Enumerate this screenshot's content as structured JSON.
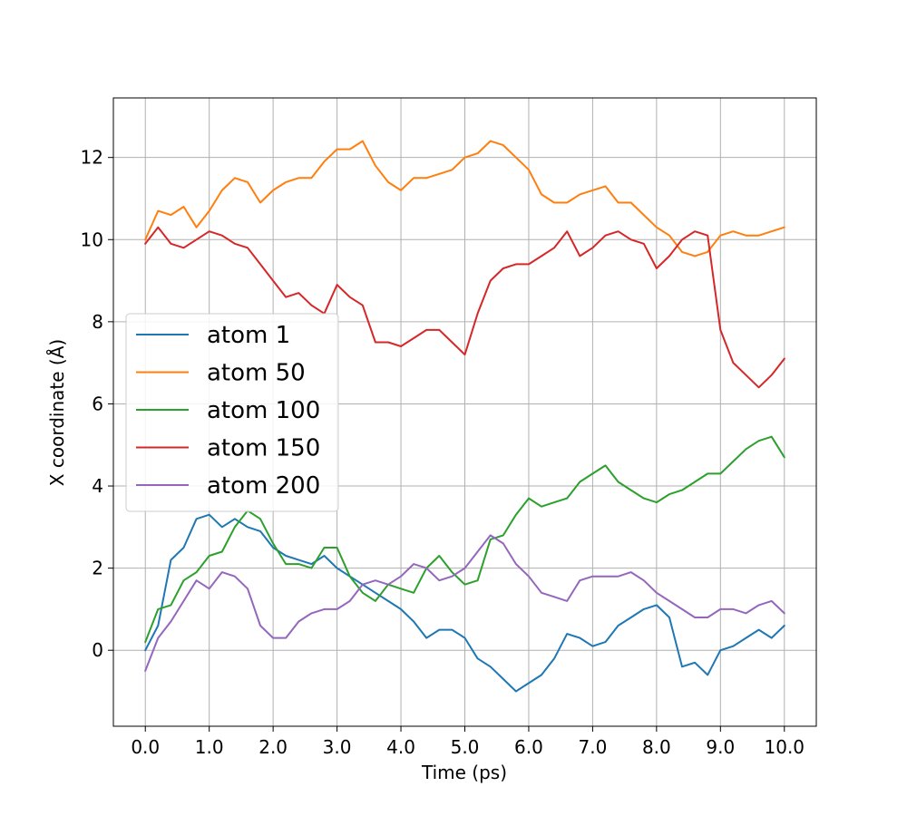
{
  "chart_data": {
    "type": "line",
    "title": "",
    "xlabel": "Time (ps)",
    "ylabel": "X coordinate (Å)",
    "xlim": [
      -0.5,
      10.5
    ],
    "ylim": [
      -1.85,
      13.45
    ],
    "xticks": [
      0,
      1,
      2,
      3,
      4,
      5,
      6,
      7,
      8,
      9,
      10
    ],
    "xtick_labels": [
      "0.0",
      "1.0",
      "2.0",
      "3.0",
      "4.0",
      "5.0",
      "6.0",
      "7.0",
      "8.0",
      "9.0",
      "10.0"
    ],
    "yticks": [
      0,
      2,
      4,
      6,
      8,
      10,
      12
    ],
    "ytick_labels": [
      "0",
      "2",
      "4",
      "6",
      "8",
      "10",
      "12"
    ],
    "grid": true,
    "legend_position": "center-left",
    "series": [
      {
        "name": "atom 1",
        "color": "#1f77b4",
        "points": [
          [
            0,
            0.0
          ],
          [
            0.2,
            0.6
          ],
          [
            0.4,
            2.2
          ],
          [
            0.6,
            2.5
          ],
          [
            0.8,
            3.2
          ],
          [
            1.0,
            3.3
          ],
          [
            1.2,
            3.0
          ],
          [
            1.4,
            3.2
          ],
          [
            1.6,
            3.0
          ],
          [
            1.8,
            2.9
          ],
          [
            2.0,
            2.5
          ],
          [
            2.2,
            2.3
          ],
          [
            2.4,
            2.2
          ],
          [
            2.6,
            2.1
          ],
          [
            2.8,
            2.3
          ],
          [
            3.0,
            2.0
          ],
          [
            3.2,
            1.8
          ],
          [
            3.4,
            1.6
          ],
          [
            3.6,
            1.4
          ],
          [
            3.8,
            1.2
          ],
          [
            4.0,
            1.0
          ],
          [
            4.2,
            0.7
          ],
          [
            4.4,
            0.3
          ],
          [
            4.6,
            0.5
          ],
          [
            4.8,
            0.5
          ],
          [
            5.0,
            0.3
          ],
          [
            5.2,
            -0.2
          ],
          [
            5.4,
            -0.4
          ],
          [
            5.6,
            -0.7
          ],
          [
            5.8,
            -1.0
          ],
          [
            6.0,
            -0.8
          ],
          [
            6.2,
            -0.6
          ],
          [
            6.4,
            -0.2
          ],
          [
            6.6,
            0.4
          ],
          [
            6.8,
            0.3
          ],
          [
            7.0,
            0.1
          ],
          [
            7.2,
            0.2
          ],
          [
            7.4,
            0.6
          ],
          [
            7.6,
            0.8
          ],
          [
            7.8,
            1.0
          ],
          [
            8.0,
            1.1
          ],
          [
            8.2,
            0.8
          ],
          [
            8.4,
            -0.4
          ],
          [
            8.6,
            -0.3
          ],
          [
            8.8,
            -0.6
          ],
          [
            9.0,
            0.0
          ],
          [
            9.2,
            0.1
          ],
          [
            9.4,
            0.3
          ],
          [
            9.6,
            0.5
          ],
          [
            9.8,
            0.3
          ],
          [
            10.0,
            0.6
          ]
        ]
      },
      {
        "name": "atom 50",
        "color": "#ff7f0e",
        "points": [
          [
            0,
            10.0
          ],
          [
            0.2,
            10.7
          ],
          [
            0.4,
            10.6
          ],
          [
            0.6,
            10.8
          ],
          [
            0.8,
            10.3
          ],
          [
            1.0,
            10.7
          ],
          [
            1.2,
            11.2
          ],
          [
            1.4,
            11.5
          ],
          [
            1.6,
            11.4
          ],
          [
            1.8,
            10.9
          ],
          [
            2.0,
            11.2
          ],
          [
            2.2,
            11.4
          ],
          [
            2.4,
            11.5
          ],
          [
            2.6,
            11.5
          ],
          [
            2.8,
            11.9
          ],
          [
            3.0,
            12.2
          ],
          [
            3.2,
            12.2
          ],
          [
            3.4,
            12.4
          ],
          [
            3.6,
            11.8
          ],
          [
            3.8,
            11.4
          ],
          [
            4.0,
            11.2
          ],
          [
            4.2,
            11.5
          ],
          [
            4.4,
            11.5
          ],
          [
            4.6,
            11.6
          ],
          [
            4.8,
            11.7
          ],
          [
            5.0,
            12.0
          ],
          [
            5.2,
            12.1
          ],
          [
            5.4,
            12.4
          ],
          [
            5.6,
            12.3
          ],
          [
            5.8,
            12.0
          ],
          [
            6.0,
            11.7
          ],
          [
            6.2,
            11.1
          ],
          [
            6.4,
            10.9
          ],
          [
            6.6,
            10.9
          ],
          [
            6.8,
            11.1
          ],
          [
            7.0,
            11.2
          ],
          [
            7.2,
            11.3
          ],
          [
            7.4,
            10.9
          ],
          [
            7.6,
            10.9
          ],
          [
            7.8,
            10.6
          ],
          [
            8.0,
            10.3
          ],
          [
            8.2,
            10.1
          ],
          [
            8.4,
            9.7
          ],
          [
            8.6,
            9.6
          ],
          [
            8.8,
            9.7
          ],
          [
            9.0,
            10.1
          ],
          [
            9.2,
            10.2
          ],
          [
            9.4,
            10.1
          ],
          [
            9.6,
            10.1
          ],
          [
            9.8,
            10.2
          ],
          [
            10.0,
            10.3
          ]
        ]
      },
      {
        "name": "atom 100",
        "color": "#2ca02c",
        "points": [
          [
            0,
            0.2
          ],
          [
            0.2,
            1.0
          ],
          [
            0.4,
            1.1
          ],
          [
            0.6,
            1.7
          ],
          [
            0.8,
            1.9
          ],
          [
            1.0,
            2.3
          ],
          [
            1.2,
            2.4
          ],
          [
            1.4,
            3.0
          ],
          [
            1.6,
            3.4
          ],
          [
            1.8,
            3.2
          ],
          [
            2.0,
            2.6
          ],
          [
            2.2,
            2.1
          ],
          [
            2.4,
            2.1
          ],
          [
            2.6,
            2.0
          ],
          [
            2.8,
            2.5
          ],
          [
            3.0,
            2.5
          ],
          [
            3.2,
            1.8
          ],
          [
            3.4,
            1.4
          ],
          [
            3.6,
            1.2
          ],
          [
            3.8,
            1.6
          ],
          [
            4.0,
            1.5
          ],
          [
            4.2,
            1.4
          ],
          [
            4.4,
            2.0
          ],
          [
            4.6,
            2.3
          ],
          [
            4.8,
            1.9
          ],
          [
            5.0,
            1.6
          ],
          [
            5.2,
            1.7
          ],
          [
            5.4,
            2.7
          ],
          [
            5.6,
            2.8
          ],
          [
            5.8,
            3.3
          ],
          [
            6.0,
            3.7
          ],
          [
            6.2,
            3.5
          ],
          [
            6.4,
            3.6
          ],
          [
            6.6,
            3.7
          ],
          [
            6.8,
            4.1
          ],
          [
            7.0,
            4.3
          ],
          [
            7.2,
            4.5
          ],
          [
            7.4,
            4.1
          ],
          [
            7.6,
            3.9
          ],
          [
            7.8,
            3.7
          ],
          [
            8.0,
            3.6
          ],
          [
            8.2,
            3.8
          ],
          [
            8.4,
            3.9
          ],
          [
            8.6,
            4.1
          ],
          [
            8.8,
            4.3
          ],
          [
            9.0,
            4.3
          ],
          [
            9.2,
            4.6
          ],
          [
            9.4,
            4.9
          ],
          [
            9.6,
            5.1
          ],
          [
            9.8,
            5.2
          ],
          [
            10.0,
            4.7
          ]
        ]
      },
      {
        "name": "atom 150",
        "color": "#d62728",
        "points": [
          [
            0,
            9.9
          ],
          [
            0.2,
            10.3
          ],
          [
            0.4,
            9.9
          ],
          [
            0.6,
            9.8
          ],
          [
            0.8,
            10.0
          ],
          [
            1.0,
            10.2
          ],
          [
            1.2,
            10.1
          ],
          [
            1.4,
            9.9
          ],
          [
            1.6,
            9.8
          ],
          [
            1.8,
            9.4
          ],
          [
            2.0,
            9.0
          ],
          [
            2.2,
            8.6
          ],
          [
            2.4,
            8.7
          ],
          [
            2.6,
            8.4
          ],
          [
            2.8,
            8.2
          ],
          [
            3.0,
            8.9
          ],
          [
            3.2,
            8.6
          ],
          [
            3.4,
            8.4
          ],
          [
            3.6,
            7.5
          ],
          [
            3.8,
            7.5
          ],
          [
            4.0,
            7.4
          ],
          [
            4.2,
            7.6
          ],
          [
            4.4,
            7.8
          ],
          [
            4.6,
            7.8
          ],
          [
            4.8,
            7.5
          ],
          [
            5.0,
            7.2
          ],
          [
            5.2,
            8.2
          ],
          [
            5.4,
            9.0
          ],
          [
            5.6,
            9.3
          ],
          [
            5.8,
            9.4
          ],
          [
            6.0,
            9.4
          ],
          [
            6.2,
            9.6
          ],
          [
            6.4,
            9.8
          ],
          [
            6.6,
            10.2
          ],
          [
            6.8,
            9.6
          ],
          [
            7.0,
            9.8
          ],
          [
            7.2,
            10.1
          ],
          [
            7.4,
            10.2
          ],
          [
            7.6,
            10.0
          ],
          [
            7.8,
            9.9
          ],
          [
            8.0,
            9.3
          ],
          [
            8.2,
            9.6
          ],
          [
            8.4,
            10.0
          ],
          [
            8.6,
            10.2
          ],
          [
            8.8,
            10.1
          ],
          [
            9.0,
            7.8
          ],
          [
            9.2,
            7.0
          ],
          [
            9.4,
            6.7
          ],
          [
            9.6,
            6.4
          ],
          [
            9.8,
            6.7
          ],
          [
            10.0,
            7.1
          ]
        ]
      },
      {
        "name": "atom 200",
        "color": "#9467bd",
        "points": [
          [
            0,
            -0.5
          ],
          [
            0.2,
            0.3
          ],
          [
            0.4,
            0.7
          ],
          [
            0.6,
            1.2
          ],
          [
            0.8,
            1.7
          ],
          [
            1.0,
            1.5
          ],
          [
            1.2,
            1.9
          ],
          [
            1.4,
            1.8
          ],
          [
            1.6,
            1.5
          ],
          [
            1.8,
            0.6
          ],
          [
            2.0,
            0.3
          ],
          [
            2.2,
            0.3
          ],
          [
            2.4,
            0.7
          ],
          [
            2.6,
            0.9
          ],
          [
            2.8,
            1.0
          ],
          [
            3.0,
            1.0
          ],
          [
            3.2,
            1.2
          ],
          [
            3.4,
            1.6
          ],
          [
            3.6,
            1.7
          ],
          [
            3.8,
            1.6
          ],
          [
            4.0,
            1.8
          ],
          [
            4.2,
            2.1
          ],
          [
            4.4,
            2.0
          ],
          [
            4.6,
            1.7
          ],
          [
            4.8,
            1.8
          ],
          [
            5.0,
            2.0
          ],
          [
            5.2,
            2.4
          ],
          [
            5.4,
            2.8
          ],
          [
            5.6,
            2.6
          ],
          [
            5.8,
            2.1
          ],
          [
            6.0,
            1.8
          ],
          [
            6.2,
            1.4
          ],
          [
            6.4,
            1.3
          ],
          [
            6.6,
            1.2
          ],
          [
            6.8,
            1.7
          ],
          [
            7.0,
            1.8
          ],
          [
            7.2,
            1.8
          ],
          [
            7.4,
            1.8
          ],
          [
            7.6,
            1.9
          ],
          [
            7.8,
            1.7
          ],
          [
            8.0,
            1.4
          ],
          [
            8.2,
            1.2
          ],
          [
            8.4,
            1.0
          ],
          [
            8.6,
            0.8
          ],
          [
            8.8,
            0.8
          ],
          [
            9.0,
            1.0
          ],
          [
            9.2,
            1.0
          ],
          [
            9.4,
            0.9
          ],
          [
            9.6,
            1.1
          ],
          [
            9.8,
            1.2
          ],
          [
            10.0,
            0.9
          ]
        ]
      }
    ]
  }
}
